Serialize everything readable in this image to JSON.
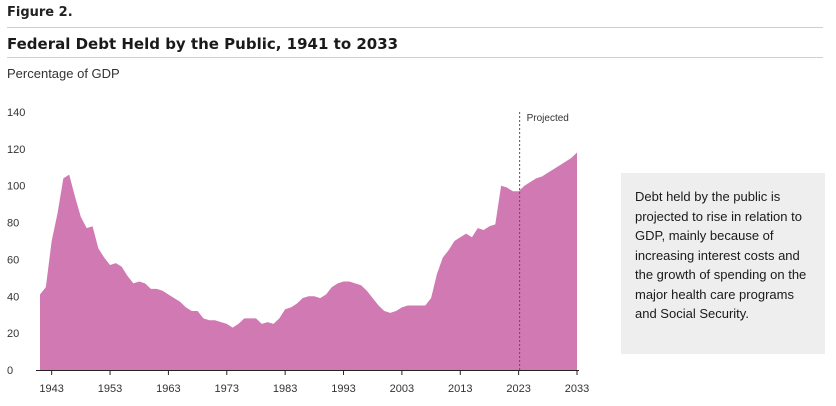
{
  "figure_label": "Figure 2.",
  "title": "Federal Debt Held by the Public, 1941 to 2033",
  "unit_label": "Percentage of GDP",
  "note": "Debt held by the public is projected to rise in relation to GDP, mainly because of increasing interest costs and the growth of spending on the major health care programs and Social Security.",
  "colors": {
    "area": "#d079b2",
    "projection_line": "#555555"
  },
  "chart_data": {
    "type": "area",
    "title": "Federal Debt Held by the Public, 1941 to 2033",
    "ylabel": "Percentage of GDP",
    "xlabel": "",
    "xlim": [
      1941,
      2033
    ],
    "ylim": [
      0,
      140
    ],
    "yticks": [
      0,
      20,
      40,
      60,
      80,
      100,
      120,
      140
    ],
    "xticks": [
      1943,
      1953,
      1963,
      1973,
      1983,
      1993,
      2003,
      2013,
      2023,
      2033
    ],
    "grid": false,
    "projection_start": 2023,
    "projection_label": "Projected",
    "x": [
      1941,
      1942,
      1943,
      1944,
      1945,
      1946,
      1947,
      1948,
      1949,
      1950,
      1951,
      1952,
      1953,
      1954,
      1955,
      1956,
      1957,
      1958,
      1959,
      1960,
      1961,
      1962,
      1963,
      1964,
      1965,
      1966,
      1967,
      1968,
      1969,
      1970,
      1971,
      1972,
      1973,
      1974,
      1975,
      1976,
      1977,
      1978,
      1979,
      1980,
      1981,
      1982,
      1983,
      1984,
      1985,
      1986,
      1987,
      1988,
      1989,
      1990,
      1991,
      1992,
      1993,
      1994,
      1995,
      1996,
      1997,
      1998,
      1999,
      2000,
      2001,
      2002,
      2003,
      2004,
      2005,
      2006,
      2007,
      2008,
      2009,
      2010,
      2011,
      2012,
      2013,
      2014,
      2015,
      2016,
      2017,
      2018,
      2019,
      2020,
      2021,
      2022,
      2023,
      2024,
      2025,
      2026,
      2027,
      2028,
      2029,
      2030,
      2031,
      2032,
      2033
    ],
    "values": [
      41,
      45,
      70,
      85,
      104,
      106,
      94,
      83,
      77,
      78,
      66,
      61,
      57,
      58,
      56,
      51,
      47,
      48,
      47,
      44,
      44,
      43,
      41,
      39,
      37,
      34,
      32,
      32,
      28,
      27,
      27,
      26,
      25,
      23,
      25,
      28,
      28,
      28,
      25,
      26,
      25,
      28,
      33,
      34,
      36,
      39,
      40,
      40,
      39,
      41,
      45,
      47,
      48,
      48,
      47,
      46,
      43,
      39,
      35,
      32,
      31,
      32,
      34,
      35,
      35,
      35,
      35,
      39,
      52,
      61,
      65,
      70,
      72,
      74,
      72,
      77,
      76,
      78,
      79,
      100,
      99,
      97,
      97,
      100,
      102,
      104,
      105,
      107,
      109,
      111,
      113,
      115,
      118
    ]
  }
}
